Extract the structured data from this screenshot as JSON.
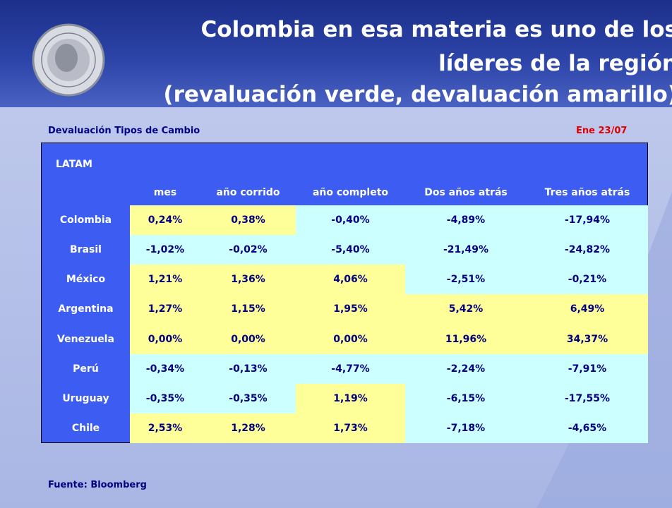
{
  "header": {
    "title_lines": [
      "Colombia en esa materia es uno de los",
      "líderes de la región",
      "(revaluación verde, devaluación amarillo)"
    ]
  },
  "table": {
    "caption": "Devaluación Tipos de Cambio",
    "date": "Ene 23/07",
    "group": "LATAM",
    "columns": [
      "mes",
      "año corrido",
      "año completo",
      "Dos años atrás",
      "Tres años atrás"
    ],
    "rows": [
      {
        "country": "Colombia",
        "values": [
          "0,24%",
          "0,38%",
          "-0,40%",
          "-4,89%",
          "-17,94%"
        ]
      },
      {
        "country": "Brasil",
        "values": [
          "-1,02%",
          "-0,02%",
          "-5,40%",
          "-21,49%",
          "-24,82%"
        ]
      },
      {
        "country": "México",
        "values": [
          "1,21%",
          "1,36%",
          "4,06%",
          "-2,51%",
          "-0,21%"
        ]
      },
      {
        "country": "Argentina",
        "values": [
          "1,27%",
          "1,15%",
          "1,95%",
          "5,42%",
          "6,49%"
        ]
      },
      {
        "country": "Venezuela",
        "values": [
          "0,00%",
          "0,00%",
          "0,00%",
          "11,96%",
          "34,37%"
        ]
      },
      {
        "country": "Perú",
        "values": [
          "-0,34%",
          "-0,13%",
          "-4,77%",
          "-2,24%",
          "-7,91%"
        ]
      },
      {
        "country": "Uruguay",
        "values": [
          "-0,35%",
          "-0,35%",
          "1,19%",
          "-6,15%",
          "-17,55%"
        ]
      },
      {
        "country": "Chile",
        "values": [
          "2,53%",
          "1,28%",
          "1,73%",
          "-7,18%",
          "-4,65%"
        ]
      }
    ]
  },
  "footer": {
    "source": "Fuente: Bloomberg"
  }
}
